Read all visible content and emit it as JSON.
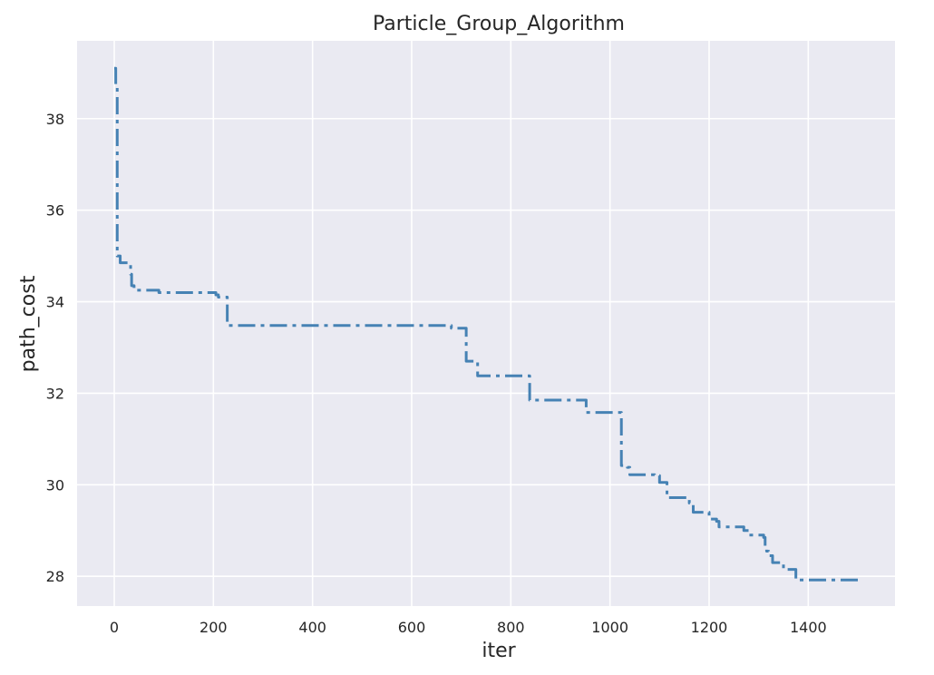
{
  "chart_data": {
    "type": "line",
    "title": "Particle_Group_Algorithm",
    "xlabel": "iter",
    "ylabel": "path_cost",
    "xlim": [
      -75,
      1575
    ],
    "ylim": [
      27.35,
      39.7
    ],
    "xticks": [
      0,
      200,
      400,
      600,
      800,
      1000,
      1200,
      1400
    ],
    "yticks": [
      28,
      30,
      32,
      34,
      36,
      38
    ],
    "grid": true,
    "legend": "none",
    "background_color": "#eaeaf2",
    "grid_color": "#ffffff",
    "line_style": "dash-dot",
    "series": [
      {
        "color": "#4682b4",
        "steps": [
          [
            0,
            39.1
          ],
          [
            3,
            38.75
          ],
          [
            6,
            35.0
          ],
          [
            12,
            34.85
          ],
          [
            33,
            34.6
          ],
          [
            35,
            34.35
          ],
          [
            40,
            34.25
          ],
          [
            90,
            34.2
          ],
          [
            205,
            34.15
          ],
          [
            210,
            34.1
          ],
          [
            228,
            33.48
          ],
          [
            680,
            33.42
          ],
          [
            710,
            32.7
          ],
          [
            733,
            32.38
          ],
          [
            838,
            31.85
          ],
          [
            952,
            31.58
          ],
          [
            1023,
            30.42
          ],
          [
            1035,
            30.38
          ],
          [
            1040,
            30.22
          ],
          [
            1090,
            30.2
          ],
          [
            1100,
            30.05
          ],
          [
            1115,
            29.72
          ],
          [
            1160,
            29.6
          ],
          [
            1168,
            29.4
          ],
          [
            1200,
            29.25
          ],
          [
            1215,
            29.2
          ],
          [
            1220,
            29.08
          ],
          [
            1270,
            29.0
          ],
          [
            1280,
            28.9
          ],
          [
            1310,
            28.85
          ],
          [
            1313,
            28.65
          ],
          [
            1316,
            28.55
          ],
          [
            1320,
            28.45
          ],
          [
            1328,
            28.3
          ],
          [
            1345,
            28.28
          ],
          [
            1350,
            28.15
          ],
          [
            1375,
            27.92
          ],
          [
            1500,
            27.92
          ]
        ]
      }
    ]
  }
}
